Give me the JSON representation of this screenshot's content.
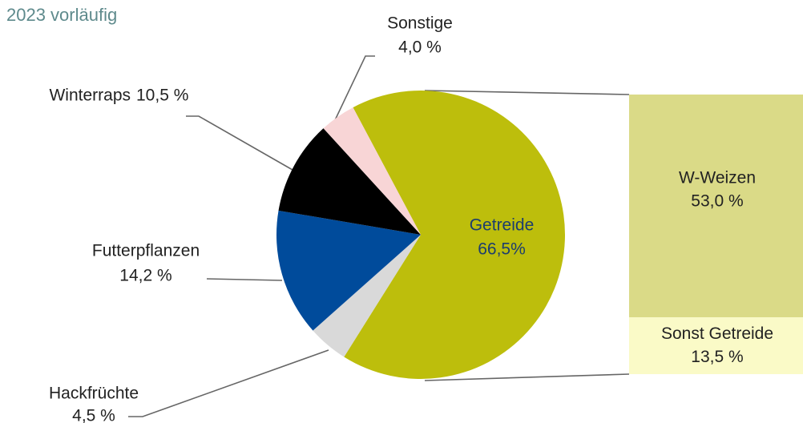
{
  "chart_data": {
    "type": "pie",
    "title": "2023 vorläufig",
    "categories": [
      "Getreide",
      "Hackfrüchte",
      "Futterpflanzen",
      "Winterraps",
      "Sonstige"
    ],
    "values": [
      66.5,
      4.5,
      14.2,
      10.5,
      4.0
    ],
    "value_labels": [
      "66,5%",
      "4,5 %",
      "14,2 %",
      "10,5 %",
      "4,0 %"
    ],
    "colors": [
      "#bdbe0c",
      "#d9d9d9",
      "#004b9b",
      "#000000",
      "#f8d5d6"
    ],
    "breakdown": {
      "categories": [
        "W-Weizen",
        "Sonst Getreide"
      ],
      "values": [
        53.0,
        13.5
      ],
      "value_labels": [
        "53,0 %",
        "13,5 %"
      ],
      "colors": [
        "#dada87",
        "#fafac7"
      ]
    }
  }
}
